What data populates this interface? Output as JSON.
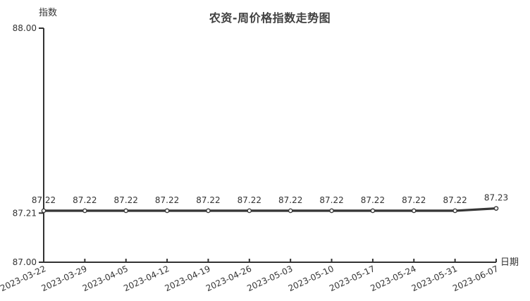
{
  "chart_data": {
    "type": "line",
    "title": "农资-周价格指数走势图",
    "ylabel": "指数",
    "xlabel": "日期",
    "categories": [
      "2023-03-22",
      "2023-03-29",
      "2023-04-05",
      "2023-04-12",
      "2023-04-19",
      "2023-04-26",
      "2023-05-03",
      "2023-05-10",
      "2023-05-17",
      "2023-05-24",
      "2023-05-31",
      "2023-06-07"
    ],
    "values": [
      87.22,
      87.22,
      87.22,
      87.22,
      87.22,
      87.22,
      87.22,
      87.22,
      87.22,
      87.22,
      87.22,
      87.23
    ],
    "point_labels": [
      "87.22",
      "87.22",
      "87.22",
      "87.22",
      "87.22",
      "87.22",
      "87.22",
      "87.22",
      "87.22",
      "87.22",
      "87.22",
      "87.23"
    ],
    "ylim": [
      87.0,
      88.0
    ],
    "yticks": [
      {
        "value": 88.0,
        "label": "88.00"
      },
      {
        "value": 87.21,
        "label": "87.21"
      },
      {
        "value": 87.0,
        "label": "87.00"
      }
    ],
    "grid": false,
    "legend_position": "none",
    "line_color": "#373737",
    "axis_color": "#333333",
    "marker_fill": "#ffffff",
    "background": "#ffffff"
  }
}
